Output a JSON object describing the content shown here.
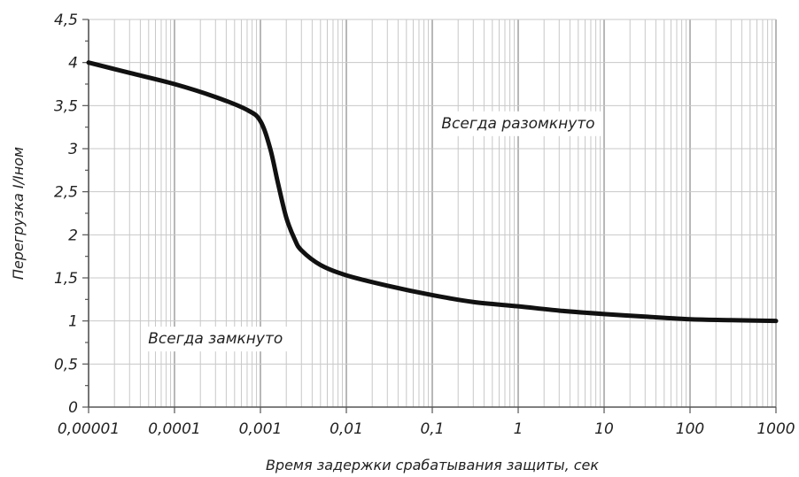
{
  "chart_data": {
    "type": "line",
    "title": "",
    "xlabel": "Время задержки срабатывания защиты, сек",
    "ylabel": "Перегрузка I/Iном",
    "x_scale": "log",
    "xlim": [
      1e-05,
      1000
    ],
    "ylim": [
      0,
      4.5
    ],
    "grid": true,
    "x_tick_labels": [
      "0,00001",
      "0,0001",
      "0,001",
      "0,01",
      "0,1",
      "1",
      "10",
      "100",
      "1000"
    ],
    "y_tick_labels": [
      "0",
      "0,5",
      "1",
      "1,5",
      "2",
      "2,5",
      "3",
      "3,5",
      "4",
      "4,5"
    ],
    "series": [
      {
        "name": "",
        "color": "#111111",
        "points": [
          [
            1e-05,
            4.0
          ],
          [
            3e-05,
            3.88
          ],
          [
            0.0001,
            3.75
          ],
          [
            0.0003,
            3.6
          ],
          [
            0.0007,
            3.45
          ],
          [
            0.001,
            3.32
          ],
          [
            0.0013,
            3.0
          ],
          [
            0.0016,
            2.6
          ],
          [
            0.002,
            2.2
          ],
          [
            0.0025,
            1.95
          ],
          [
            0.003,
            1.82
          ],
          [
            0.005,
            1.65
          ],
          [
            0.01,
            1.53
          ],
          [
            0.03,
            1.41
          ],
          [
            0.1,
            1.3
          ],
          [
            0.3,
            1.22
          ],
          [
            1,
            1.17
          ],
          [
            3,
            1.12
          ],
          [
            10,
            1.08
          ],
          [
            30,
            1.05
          ],
          [
            100,
            1.02
          ],
          [
            300,
            1.01
          ],
          [
            1000,
            1.0
          ]
        ]
      }
    ],
    "annotations": [
      {
        "text": "Всегда разомкнуто",
        "x": 1,
        "y": 3.3
      },
      {
        "text": "Всегда замкнуто",
        "x": 0.0003,
        "y": 0.8
      }
    ]
  }
}
